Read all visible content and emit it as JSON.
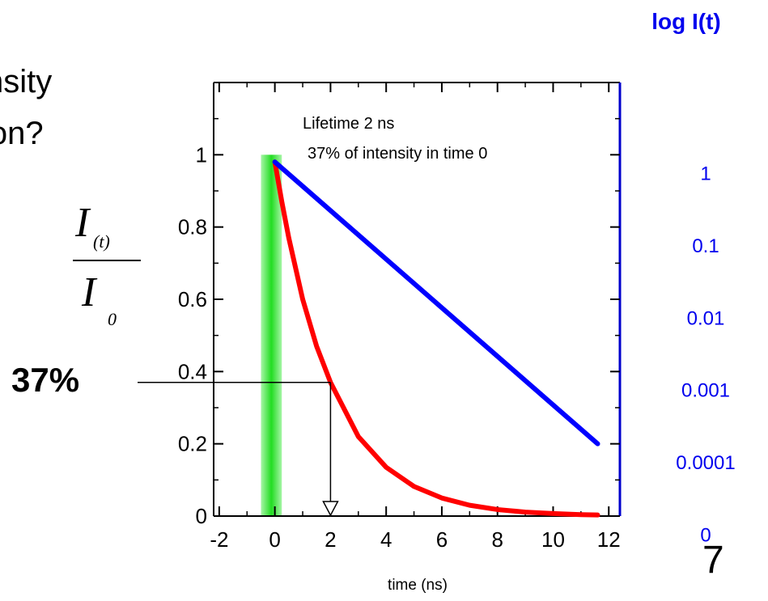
{
  "slide": {
    "partial_title_line1": "nsity",
    "partial_title_line2": "ion?",
    "slide_number": "7",
    "percent_callout": "37%",
    "fraction_numerator": "I",
    "fraction_numerator_sub": "(t)",
    "fraction_denominator": "I",
    "fraction_denominator_sub": "0"
  },
  "chart_data": {
    "type": "line",
    "title": "",
    "xlabel": "time (ns)",
    "ylabel": "",
    "right_axis_label": "log I(t)",
    "xlim": [
      -2.2,
      12.4
    ],
    "ylim": [
      0,
      1.2
    ],
    "x_ticks": [
      -2,
      0,
      2,
      4,
      6,
      8,
      10,
      12
    ],
    "x_tick_labels": [
      "-2",
      "0",
      "2",
      "4",
      "6",
      "8",
      "10",
      "12"
    ],
    "y_ticks": [
      0,
      0.2,
      0.4,
      0.6,
      0.8,
      1
    ],
    "y_tick_labels": [
      "0",
      "0.2",
      "0.4",
      "0.6",
      "0.8",
      "1"
    ],
    "right_ticks": [
      {
        "label": "1",
        "linear_y": 0.95
      },
      {
        "label": "0.1",
        "linear_y": 0.75
      },
      {
        "label": "0.01",
        "linear_y": 0.55
      },
      {
        "label": "0.001",
        "linear_y": 0.35
      },
      {
        "label": "0.0001",
        "linear_y": 0.15
      },
      {
        "label": "0",
        "linear_y": -0.05
      }
    ],
    "annotations": [
      {
        "text": "Lifetime 2 ns"
      },
      {
        "text": "37% of intensity in time 0"
      }
    ],
    "excitation_pulse": {
      "x_start": -0.5,
      "x_end": 0.25,
      "y_top": 1.0
    },
    "lifetime_marker": {
      "x": 2,
      "y": 0.37
    },
    "series": [
      {
        "color": "#ff0000",
        "formula": "exp(-t/2)",
        "x": [
          0,
          0.25,
          0.5,
          1,
          1.5,
          2,
          3,
          4,
          5,
          6,
          7,
          8,
          9,
          10,
          11,
          11.6
        ],
        "values": [
          0.98,
          0.87,
          0.77,
          0.6,
          0.47,
          0.37,
          0.22,
          0.135,
          0.082,
          0.05,
          0.03,
          0.018,
          0.011,
          0.007,
          0.004,
          0.003
        ]
      },
      {
        "color": "#0000ff",
        "x": [
          0,
          11.6
        ],
        "values": [
          0.98,
          0.2
        ]
      }
    ],
    "colors": {
      "axis": "#000000",
      "right_axis": "#0000cc",
      "right_labels": "#0000ee",
      "pulse": "#33dd33"
    }
  }
}
